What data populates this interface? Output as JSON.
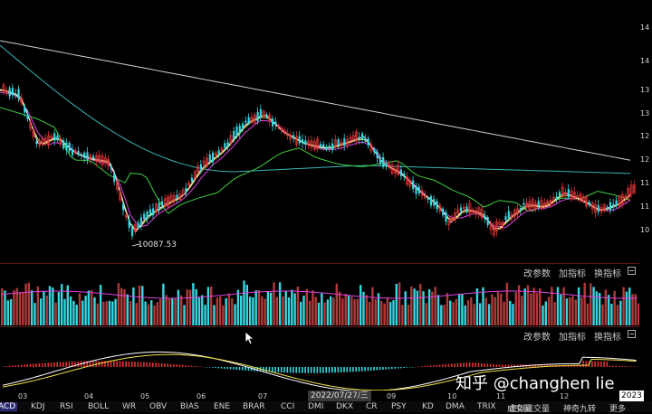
{
  "price_panel": {
    "low_marker": "10087.53",
    "right_axis_ticks": [
      "14",
      "14",
      "13",
      "13",
      "12",
      "12",
      "11",
      "11",
      "10"
    ]
  },
  "volume_toolbar": {
    "buttons": [
      "改参数",
      "加指标",
      "换指标"
    ]
  },
  "macd_toolbar": {
    "buttons": [
      "改参数",
      "加指标",
      "换指标"
    ]
  },
  "time_axis": {
    "months": [
      "03",
      "04",
      "05",
      "06",
      "07",
      "09",
      "10",
      "11",
      "12"
    ],
    "cursor_date": "2022/07/27/三",
    "year": "2023"
  },
  "indicator_tabs": [
    "ACD",
    "KDJ",
    "RSI",
    "BOLL",
    "WR",
    "OBV",
    "BIAS",
    "ENE",
    "BRAR",
    "CCI",
    "DMI",
    "DKX",
    "CR",
    "PSY",
    "KD",
    "DMA",
    "TRIX",
    "成交量",
    "虚拟成交量",
    "神奇九转",
    "更多"
  ],
  "watermark": "知乎 @changhen lie",
  "colors": {
    "up": "#e03434",
    "down": "#37d7e0",
    "ma5": "#ffffff",
    "ma10": "#f2e14a",
    "ma20": "#e040e0",
    "ma60": "#40d040",
    "ma120": "#3ab3b3",
    "ma250": "#cfcfcf"
  }
}
